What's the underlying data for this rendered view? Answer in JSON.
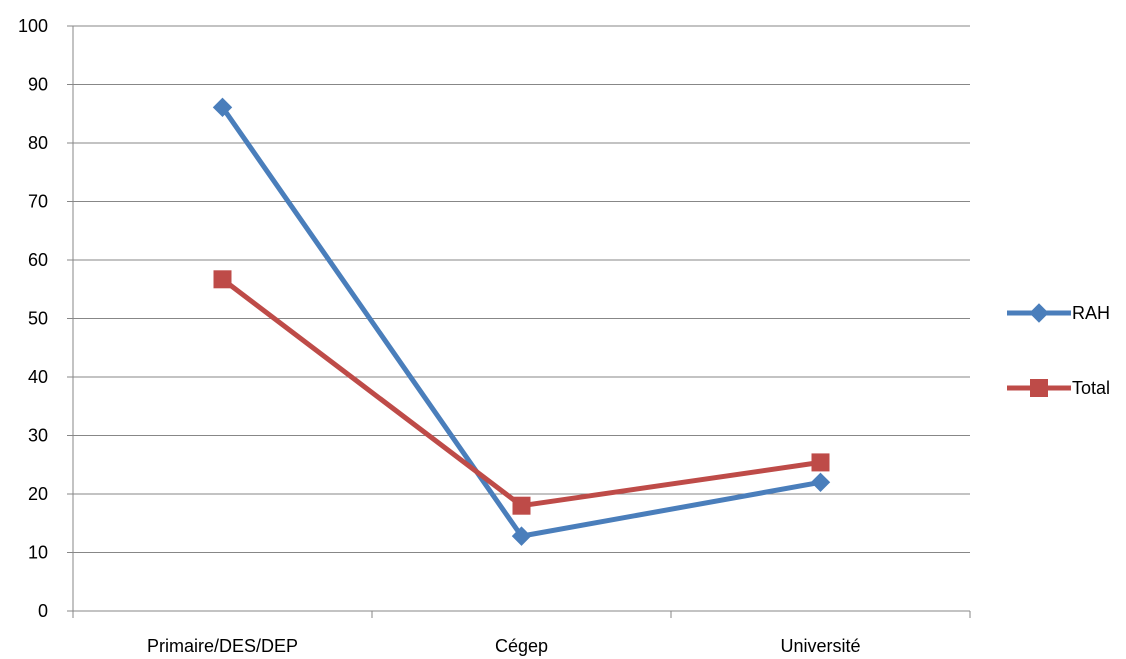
{
  "chart_data": {
    "type": "line",
    "categories": [
      "Primaire/DES/DEP",
      "Cégep",
      "Université"
    ],
    "ylim": [
      0,
      100
    ],
    "yticks": [
      0,
      10,
      20,
      30,
      40,
      50,
      60,
      70,
      80,
      90,
      100
    ],
    "grid": true,
    "legend_position": "right",
    "series": [
      {
        "name": "RAH",
        "values": [
          86.1,
          12.8,
          22.0
        ],
        "color": "#4a7ebb",
        "marker": "diamond"
      },
      {
        "name": "Total",
        "values": [
          56.7,
          18.0,
          25.4
        ],
        "color": "#be4b48",
        "marker": "square"
      }
    ]
  }
}
